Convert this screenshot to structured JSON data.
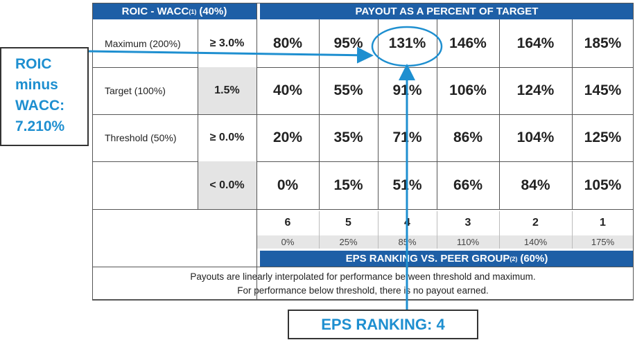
{
  "header": {
    "left_title": "ROIC - WACC",
    "left_sup": "(1)",
    "left_suffix": "(40%)",
    "right_title": "PAYOUT AS A PERCENT OF TARGET"
  },
  "rows": [
    {
      "label": "Maximum (200%)",
      "threshold": "≥ 3.0%",
      "payouts": [
        "80%",
        "95%",
        "131%",
        "146%",
        "164%",
        "185%"
      ]
    },
    {
      "label": "Target (100%)",
      "threshold": "1.5%",
      "payouts": [
        "40%",
        "55%",
        "91%",
        "106%",
        "124%",
        "145%"
      ]
    },
    {
      "label": "Threshold (50%)",
      "threshold": "≥ 0.0%",
      "payouts": [
        "20%",
        "35%",
        "71%",
        "86%",
        "104%",
        "125%"
      ]
    },
    {
      "threshold": "< 0.0%",
      "payouts": [
        "0%",
        "15%",
        "51%",
        "66%",
        "84%",
        "105%"
      ]
    }
  ],
  "eps_ranks": [
    "6",
    "5",
    "4",
    "3",
    "2",
    "1"
  ],
  "eps_payouts": [
    "0%",
    "25%",
    "85%",
    "110%",
    "140%",
    "175%"
  ],
  "eps_header": {
    "title": "EPS RANKING VS. PEER GROUP",
    "sup": "(2)",
    "suffix": "(60%)"
  },
  "notes": [
    "Payouts are linearly interpolated for performance between threshold and maximum.",
    "For performance below threshold, there is no payout earned."
  ],
  "callouts": {
    "roic": [
      "ROIC",
      "minus",
      "WACC:",
      "7.210%"
    ],
    "eps": "EPS RANKING: 4"
  }
}
